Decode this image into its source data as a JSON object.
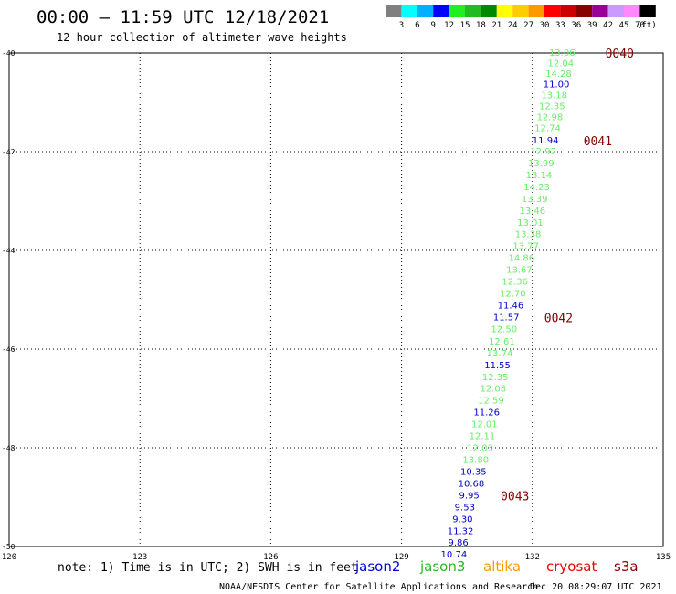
{
  "header": {
    "title": "00:00 – 11:59 UTC 12/18/2021",
    "subtitle": "12 hour collection of altimeter wave heights"
  },
  "colorbar": {
    "unit": "(ft)",
    "colors": [
      "#808080",
      "#00ffff",
      "#00b0ff",
      "#0000ff",
      "#22ee22",
      "#22bb22",
      "#008800",
      "#ffff00",
      "#ffcc00",
      "#ff9900",
      "#ff0000",
      "#cc0000",
      "#880000",
      "#990099",
      "#cc99ff",
      "#ff88ff",
      "#000000"
    ],
    "labels": [
      "3",
      "6",
      "9",
      "12",
      "15",
      "18",
      "21",
      "24",
      "27",
      "30",
      "33",
      "36",
      "39",
      "42",
      "45",
      "70"
    ]
  },
  "chart_data": {
    "type": "scatter",
    "xlim": [
      120,
      135
    ],
    "ylim": [
      -50,
      -40
    ],
    "x_ticks": [
      "120",
      "123",
      "126",
      "129",
      "132",
      "135"
    ],
    "y_ticks": [
      "-40",
      "-42",
      "-44",
      "-46",
      "-48",
      "-50"
    ],
    "grid": true,
    "points": [
      {
        "lon": 132.68,
        "lat": -40.0,
        "label": "13.06",
        "sat": "jason3"
      },
      {
        "lon": 132.65,
        "lat": -40.21,
        "label": "12.04",
        "sat": "jason3"
      },
      {
        "lon": 132.6,
        "lat": -40.43,
        "label": "14.28",
        "sat": "jason3"
      },
      {
        "lon": 132.55,
        "lat": -40.64,
        "label": "11.00",
        "sat": "jason2"
      },
      {
        "lon": 132.5,
        "lat": -40.86,
        "label": "13.18",
        "sat": "jason3"
      },
      {
        "lon": 132.45,
        "lat": -41.08,
        "label": "12.35",
        "sat": "jason3"
      },
      {
        "lon": 132.4,
        "lat": -41.31,
        "label": "12.98",
        "sat": "jason3"
      },
      {
        "lon": 132.35,
        "lat": -41.53,
        "label": "12.74",
        "sat": "jason3"
      },
      {
        "lon": 132.3,
        "lat": -41.78,
        "label": "11.94",
        "sat": "jason2"
      },
      {
        "lon": 132.25,
        "lat": -42.0,
        "label": "12.92",
        "sat": "jason3"
      },
      {
        "lon": 132.2,
        "lat": -42.24,
        "label": "13.99",
        "sat": "jason3"
      },
      {
        "lon": 132.15,
        "lat": -42.48,
        "label": "13.14",
        "sat": "jason3"
      },
      {
        "lon": 132.1,
        "lat": -42.72,
        "label": "14.23",
        "sat": "jason3"
      },
      {
        "lon": 132.05,
        "lat": -42.96,
        "label": "13.39",
        "sat": "jason3"
      },
      {
        "lon": 132.0,
        "lat": -43.2,
        "label": "13.46",
        "sat": "jason3"
      },
      {
        "lon": 131.95,
        "lat": -43.44,
        "label": "13.01",
        "sat": "jason3"
      },
      {
        "lon": 131.9,
        "lat": -43.68,
        "label": "13.38",
        "sat": "jason3"
      },
      {
        "lon": 131.85,
        "lat": -43.92,
        "label": "13.77",
        "sat": "jason3"
      },
      {
        "lon": 131.75,
        "lat": -44.16,
        "label": "14.86",
        "sat": "jason3"
      },
      {
        "lon": 131.7,
        "lat": -44.4,
        "label": "13.67",
        "sat": "jason3"
      },
      {
        "lon": 131.6,
        "lat": -44.64,
        "label": "12.36",
        "sat": "jason3"
      },
      {
        "lon": 131.55,
        "lat": -44.88,
        "label": "12.70",
        "sat": "jason3"
      },
      {
        "lon": 131.5,
        "lat": -45.12,
        "label": "11.46",
        "sat": "jason2"
      },
      {
        "lon": 131.4,
        "lat": -45.36,
        "label": "11.57",
        "sat": "jason2"
      },
      {
        "lon": 131.35,
        "lat": -45.6,
        "label": "12.50",
        "sat": "jason3"
      },
      {
        "lon": 131.3,
        "lat": -45.85,
        "label": "12.61",
        "sat": "jason3"
      },
      {
        "lon": 131.25,
        "lat": -46.09,
        "label": "13.74",
        "sat": "jason3"
      },
      {
        "lon": 131.2,
        "lat": -46.33,
        "label": "11.55",
        "sat": "jason2"
      },
      {
        "lon": 131.15,
        "lat": -46.57,
        "label": "12.35",
        "sat": "jason3"
      },
      {
        "lon": 131.1,
        "lat": -46.81,
        "label": "12.08",
        "sat": "jason3"
      },
      {
        "lon": 131.05,
        "lat": -47.05,
        "label": "12.59",
        "sat": "jason3"
      },
      {
        "lon": 130.95,
        "lat": -47.29,
        "label": "11.26",
        "sat": "jason2"
      },
      {
        "lon": 130.9,
        "lat": -47.53,
        "label": "12.01",
        "sat": "jason3"
      },
      {
        "lon": 130.85,
        "lat": -47.77,
        "label": "12.11",
        "sat": "jason3"
      },
      {
        "lon": 130.8,
        "lat": -48.01,
        "label": "12.03",
        "sat": "jason3"
      },
      {
        "lon": 130.7,
        "lat": -48.25,
        "label": "13.80",
        "sat": "jason3"
      },
      {
        "lon": 130.65,
        "lat": -48.49,
        "label": "10.35",
        "sat": "jason2"
      },
      {
        "lon": 130.6,
        "lat": -48.73,
        "label": "10.68",
        "sat": "jason2"
      },
      {
        "lon": 130.55,
        "lat": -48.97,
        "label": "9.95",
        "sat": "jason2"
      },
      {
        "lon": 130.45,
        "lat": -49.21,
        "label": "9.53",
        "sat": "jason2"
      },
      {
        "lon": 130.4,
        "lat": -49.45,
        "label": "9.30",
        "sat": "jason2"
      },
      {
        "lon": 130.35,
        "lat": -49.69,
        "label": "11.32",
        "sat": "jason2"
      },
      {
        "lon": 130.3,
        "lat": -49.93,
        "label": "9.86",
        "sat": "jason2"
      },
      {
        "lon": 130.2,
        "lat": -50.17,
        "label": "10.74",
        "sat": "jason2"
      }
    ],
    "time_labels": [
      {
        "lon": 134.0,
        "lat": -40.0,
        "label": "0040"
      },
      {
        "lon": 133.5,
        "lat": -41.78,
        "label": "0041"
      },
      {
        "lon": 132.6,
        "lat": -45.36,
        "label": "0042"
      },
      {
        "lon": 131.6,
        "lat": -48.97,
        "label": "0043"
      }
    ]
  },
  "satellites": [
    {
      "key": "jason2",
      "name": "jason2",
      "color": "#0000dd"
    },
    {
      "key": "jason3",
      "name": "jason3",
      "color": "#22bb22"
    },
    {
      "key": "altika",
      "name": "altika",
      "color": "#ff9900"
    },
    {
      "key": "cryosat",
      "name": "cryosat",
      "color": "#ee0000"
    },
    {
      "key": "s3a",
      "name": "s3a",
      "color": "#880000"
    }
  ],
  "colors": {
    "jason3_text": "#66ee66",
    "jason2_text": "#0000cc",
    "time_label": "#880000"
  },
  "footer": {
    "note": "note: 1) Time is in UTC; 2) SWH is in feet",
    "credit": "NOAA/NESDIS Center for Satellite Applications and Research",
    "generated": "Dec 20 08:29:07 UTC 2021"
  }
}
